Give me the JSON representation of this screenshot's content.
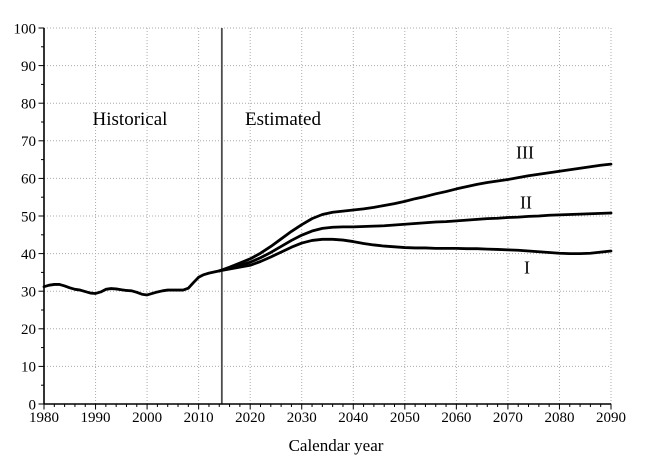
{
  "figure": {
    "region_labels": {
      "historical": "Historical",
      "estimated": "Estimated"
    },
    "series_labels": {
      "I": "I",
      "II": "II",
      "III": "III"
    },
    "xlabel": "Calendar year"
  },
  "colors": {
    "line": "#000000",
    "axis": "#000000",
    "grid": "#ababab",
    "divider": "#4d4d4d",
    "text": "#000000",
    "background": "#ffffff"
  },
  "chart_data": {
    "type": "line",
    "title": "",
    "xlabel": "Calendar year",
    "ylabel": "",
    "xlim": [
      1980,
      2090
    ],
    "ylim": [
      0,
      100
    ],
    "x_major_ticks": [
      1980,
      1990,
      2000,
      2010,
      2020,
      2030,
      2040,
      2050,
      2060,
      2070,
      2080,
      2090
    ],
    "y_major_ticks": [
      0,
      10,
      20,
      30,
      40,
      50,
      60,
      70,
      80,
      90,
      100
    ],
    "x_minor_step": 2,
    "y_minor_step": 5,
    "grid": "dotted",
    "legend_position": "none",
    "divider_year": 2014.5,
    "annotations": [
      {
        "text": "Historical",
        "x": 1996.7,
        "y": 75.5
      },
      {
        "text": "Estimated",
        "x": 2026.4,
        "y": 75.5
      },
      {
        "text": "III",
        "x": 2073.5,
        "y": 66.5
      },
      {
        "text": "II",
        "x": 2073.6,
        "y": 53.5
      },
      {
        "text": "I",
        "x": 2073.8,
        "y": 36.2
      }
    ],
    "series": [
      {
        "name": "Historical",
        "x": [
          1980,
          1981,
          1982,
          1983,
          1984,
          1985,
          1986,
          1987,
          1988,
          1989,
          1990,
          1991,
          1992,
          1993,
          1994,
          1995,
          1996,
          1997,
          1998,
          1999,
          2000,
          2001,
          2002,
          2003,
          2004,
          2005,
          2006,
          2007,
          2008,
          2009,
          2010,
          2011,
          2012,
          2013,
          2014
        ],
        "values": [
          31.2,
          31.6,
          31.8,
          31.8,
          31.4,
          30.9,
          30.5,
          30.3,
          29.9,
          29.5,
          29.4,
          29.8,
          30.5,
          30.7,
          30.6,
          30.4,
          30.2,
          30.1,
          29.7,
          29.2,
          29.0,
          29.4,
          29.8,
          30.1,
          30.3,
          30.3,
          30.3,
          30.3,
          30.8,
          32.3,
          33.7,
          34.4,
          34.8,
          35.1,
          35.4
        ]
      },
      {
        "name": "III",
        "x": [
          2014,
          2016,
          2018,
          2020,
          2022,
          2024,
          2026,
          2028,
          2030,
          2032,
          2034,
          2036,
          2038,
          2040,
          2042,
          2044,
          2046,
          2048,
          2050,
          2052,
          2054,
          2056,
          2058,
          2060,
          2062,
          2064,
          2066,
          2068,
          2070,
          2072,
          2074,
          2076,
          2078,
          2080,
          2082,
          2084,
          2086,
          2088,
          2090
        ],
        "values": [
          35.4,
          36.4,
          37.5,
          38.6,
          40.1,
          41.9,
          43.9,
          45.9,
          47.7,
          49.3,
          50.4,
          51.0,
          51.3,
          51.6,
          51.9,
          52.3,
          52.8,
          53.3,
          53.9,
          54.6,
          55.2,
          55.9,
          56.5,
          57.2,
          57.8,
          58.4,
          58.9,
          59.3,
          59.7,
          60.2,
          60.7,
          61.1,
          61.5,
          61.9,
          62.3,
          62.7,
          63.1,
          63.5,
          63.8
        ]
      },
      {
        "name": "II",
        "x": [
          2014,
          2016,
          2018,
          2020,
          2022,
          2024,
          2026,
          2028,
          2030,
          2032,
          2034,
          2036,
          2038,
          2040,
          2042,
          2044,
          2046,
          2048,
          2050,
          2052,
          2054,
          2056,
          2058,
          2060,
          2062,
          2064,
          2066,
          2068,
          2070,
          2072,
          2074,
          2076,
          2078,
          2080,
          2082,
          2084,
          2086,
          2088,
          2090
        ],
        "values": [
          35.4,
          36.1,
          36.9,
          37.7,
          38.9,
          40.3,
          41.9,
          43.5,
          44.9,
          46.0,
          46.7,
          47.0,
          47.1,
          47.1,
          47.2,
          47.3,
          47.4,
          47.6,
          47.8,
          48.0,
          48.2,
          48.4,
          48.5,
          48.7,
          48.9,
          49.1,
          49.3,
          49.4,
          49.6,
          49.7,
          49.9,
          50.0,
          50.2,
          50.3,
          50.4,
          50.5,
          50.6,
          50.7,
          50.8
        ]
      },
      {
        "name": "I",
        "x": [
          2014,
          2016,
          2018,
          2020,
          2022,
          2024,
          2026,
          2028,
          2030,
          2032,
          2034,
          2036,
          2038,
          2040,
          2042,
          2044,
          2046,
          2048,
          2050,
          2052,
          2054,
          2056,
          2058,
          2060,
          2062,
          2064,
          2066,
          2068,
          2070,
          2072,
          2074,
          2076,
          2078,
          2080,
          2082,
          2084,
          2086,
          2088,
          2090
        ],
        "values": [
          35.4,
          35.9,
          36.4,
          36.9,
          37.9,
          39.1,
          40.4,
          41.7,
          42.8,
          43.5,
          43.8,
          43.8,
          43.6,
          43.2,
          42.7,
          42.3,
          42.0,
          41.8,
          41.6,
          41.5,
          41.5,
          41.4,
          41.4,
          41.4,
          41.3,
          41.3,
          41.2,
          41.1,
          41.0,
          40.9,
          40.7,
          40.5,
          40.3,
          40.1,
          40.0,
          40.0,
          40.1,
          40.4,
          40.7
        ]
      }
    ]
  }
}
